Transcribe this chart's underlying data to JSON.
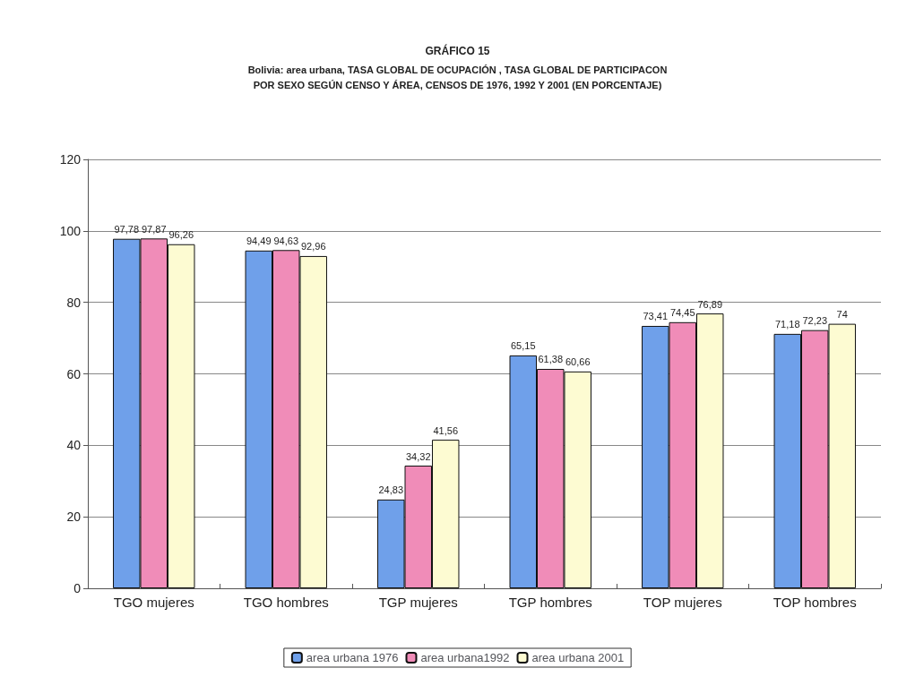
{
  "chart_data": {
    "type": "bar",
    "title": "GRÁFICO 15",
    "subtitle": "Bolivia: area urbana, TASA GLOBAL DE OCUPACIÓN , TASA GLOBAL DE PARTICIPACON\nPOR SEXO SEGÚN CENSO Y ÁREA, CENSOS DE 1976, 1992 Y 2001 (EN PORCENTAJE)",
    "categories": [
      "TGO mujeres",
      "TGO hombres",
      "TGP mujeres",
      "TGP hombres",
      "TOP mujeres",
      "TOP hombres"
    ],
    "series": [
      {
        "name": "area urbana 1976",
        "color": "#6fa0ea",
        "values": [
          97.78,
          94.49,
          24.83,
          65.15,
          73.41,
          71.18
        ],
        "value_labels": [
          "97,78",
          "94,49",
          "24,83",
          "65,15",
          "73,41",
          "71,18"
        ]
      },
      {
        "name": "area urbana1992",
        "color": "#f08cb8",
        "values": [
          97.87,
          94.63,
          34.32,
          61.38,
          74.45,
          72.23
        ],
        "value_labels": [
          "97,87",
          "94,63",
          "34,32",
          "61,38",
          "74,45",
          "72,23"
        ]
      },
      {
        "name": "area urbana 2001",
        "color": "#fdfbd2",
        "values": [
          96.26,
          92.96,
          41.56,
          60.66,
          76.89,
          74
        ],
        "value_labels": [
          "96,26",
          "92,96",
          "41,56",
          "60,66",
          "76,89",
          "74"
        ]
      }
    ],
    "ylim": [
      0,
      120
    ],
    "yticks": [
      0,
      20,
      40,
      60,
      80,
      100,
      120
    ],
    "grid": "y",
    "legend": "bottom"
  }
}
